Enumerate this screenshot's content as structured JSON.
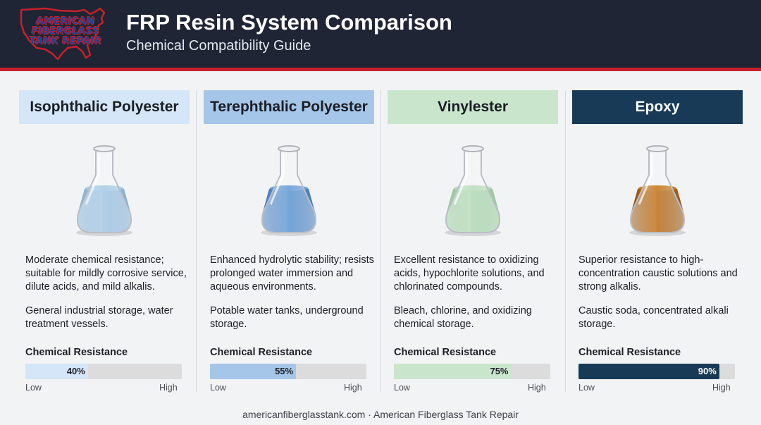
{
  "header": {
    "logo_text": "AMERICAN FIBERGLASS TANK REPAIR",
    "title": "FRP Resin System Comparison",
    "subtitle": "Chemical Compatibility Guide"
  },
  "colors": {
    "header_bg": "#1f2534",
    "accent_red": "#c8202a"
  },
  "resins": [
    {
      "name": "Isophthalic Polyester",
      "description": "Moderate chemical resistance; suitable for mildly corrosive service, dilute acids, and mild alkalis.",
      "applications": "General industrial storage, water treatment vessels.",
      "resistance_label": "Chemical Resistance",
      "resistance_percent": 40,
      "resistance_text": "40%",
      "low_label": "Low",
      "high_label": "High",
      "header_color": "#d4e6f7",
      "header_text_color": "#1a1d24",
      "bar_color": "#d4e6f7",
      "liquid_color": "#a9cbe6",
      "liquid_dark": "#7fa9cf"
    },
    {
      "name": "Terephthalic Polyester",
      "description": "Enhanced hydrolytic stability; resists prolonged water immersion and aqueous environments.",
      "applications": "Potable water tanks, underground storage.",
      "resistance_label": "Chemical Resistance",
      "resistance_percent": 55,
      "resistance_text": "55%",
      "low_label": "Low",
      "high_label": "High",
      "header_color": "#a5c6e8",
      "header_text_color": "#1a1d24",
      "bar_color": "#a5c6e8",
      "liquid_color": "#6a9fd6",
      "liquid_dark": "#3f74b4"
    },
    {
      "name": "Vinylester",
      "description": "Excellent resistance to oxidizing acids, hypochlorite solutions, and chlorinated compounds.",
      "applications": "Bleach, chlorine, and oxidizing chemical storage.",
      "resistance_label": "Chemical Resistance",
      "resistance_percent": 75,
      "resistance_text": "75%",
      "low_label": "Low",
      "high_label": "High",
      "header_color": "#c9e6cd",
      "header_text_color": "#1a1d24",
      "bar_color": "#c9e6cd",
      "liquid_color": "#b9dcbc",
      "liquid_dark": "#8fc496"
    },
    {
      "name": "Epoxy",
      "description": "Superior resistance to high-concentration caustic solutions and strong alkalis.",
      "applications": "Caustic soda, concentrated alkali storage.",
      "resistance_label": "Chemical Resistance",
      "resistance_percent": 90,
      "resistance_text": "90%",
      "low_label": "Low",
      "high_label": "High",
      "header_color": "#183a56",
      "header_text_color": "#ffffff",
      "bar_color": "#183a56",
      "liquid_color": "#c47a24",
      "liquid_dark": "#8e4f10"
    }
  ],
  "footer": "americanfiberglasstank.com · American Fiberglass Tank Repair"
}
